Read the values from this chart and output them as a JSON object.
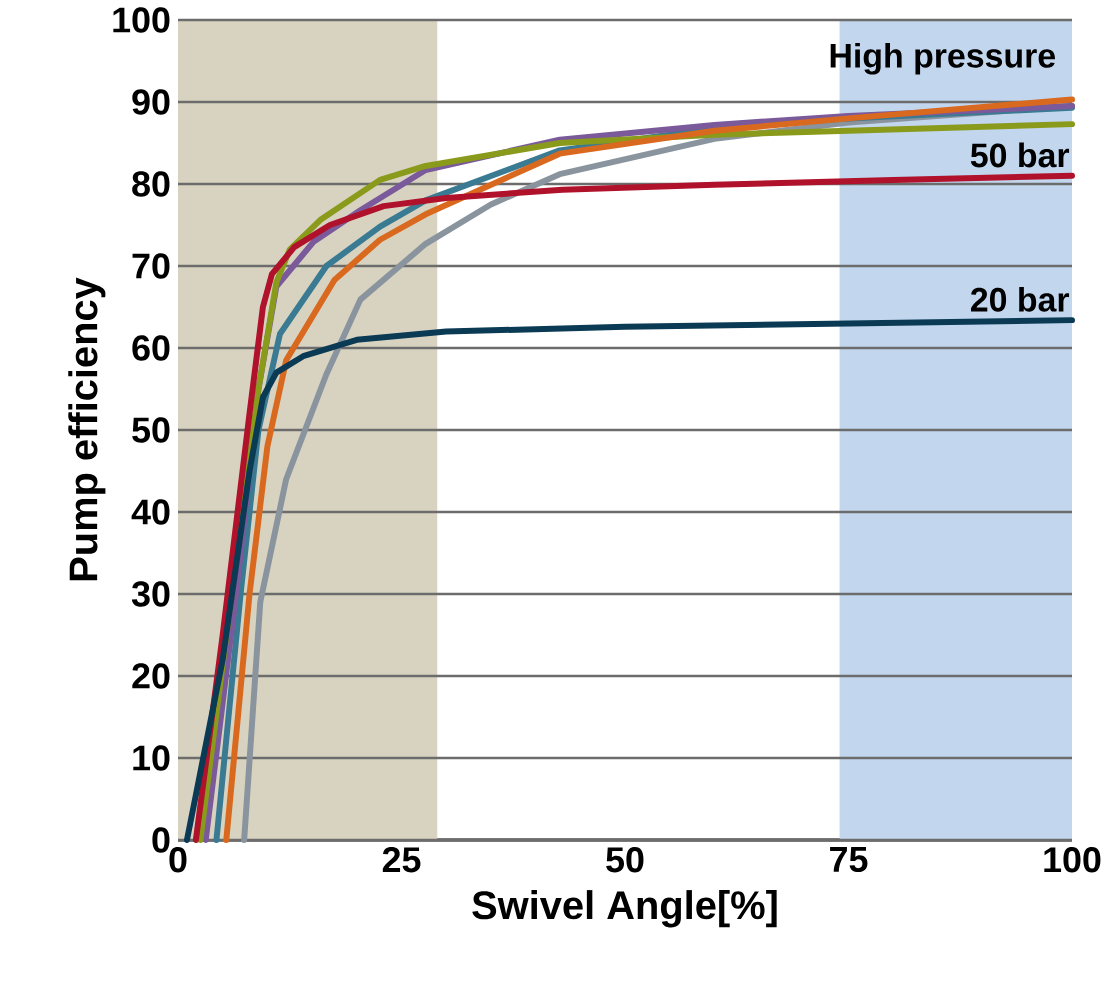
{
  "chart_data": {
    "type": "line",
    "xlabel": "Swivel Angle[%]",
    "ylabel": "Pump efficiency",
    "xlim": [
      0,
      100
    ],
    "ylim": [
      0,
      100
    ],
    "xticks": [
      0,
      25,
      50,
      75,
      100
    ],
    "yticks": [
      0,
      10,
      20,
      30,
      40,
      50,
      60,
      70,
      80,
      90,
      100
    ],
    "grid": "y",
    "marker": "none",
    "line_style": "solid",
    "annotations": [
      "High pressure"
    ],
    "bands": [
      {
        "axis": "x",
        "from": 0,
        "to": 29,
        "color": "#d8d3c1"
      },
      {
        "axis": "x",
        "from": 74,
        "to": 100,
        "color": "#c2d6ee"
      }
    ],
    "series": [
      {
        "color": "#8a949e",
        "x": [
          7.4,
          9.2,
          12.1,
          16.6,
          20.4,
          27.7,
          35,
          42.7,
          60,
          75,
          100
        ],
        "values": [
          0,
          29,
          44,
          56.8,
          65.9,
          72.7,
          77.5,
          81.2,
          85.5,
          87.5,
          89.5
        ]
      },
      {
        "color": "#3a7b93",
        "x": [
          4.3,
          7,
          9,
          11.4,
          16.6,
          22.6,
          27.7,
          42.7,
          60,
          75,
          100
        ],
        "values": [
          0,
          30,
          50,
          61.7,
          70,
          74.8,
          78,
          84.1,
          86.8,
          88,
          89.3
        ]
      },
      {
        "color": "#7a5a9a",
        "x": [
          3.1,
          6.5,
          9,
          11,
          15.2,
          20.4,
          27.7,
          42.7,
          60,
          75,
          100
        ],
        "values": [
          0,
          30,
          55,
          67.5,
          73,
          76.8,
          81.7,
          85.4,
          87.2,
          88.3,
          89.5
        ]
      },
      {
        "color": "#8a9a1b",
        "x": [
          2.5,
          6,
          9,
          11,
          12.5,
          15.9,
          22.6,
          27.7,
          42.7,
          60,
          75,
          100
        ],
        "values": [
          0,
          30,
          55,
          68,
          72,
          75.6,
          80.5,
          82.2,
          85,
          86,
          86.5,
          87.3
        ]
      },
      {
        "color": "#d9691e",
        "x": [
          5.4,
          8,
          10,
          12.1,
          17.5,
          22.6,
          27.7,
          42.7,
          60,
          75,
          100
        ],
        "values": [
          0,
          30,
          48,
          58.5,
          68.3,
          73.2,
          76.3,
          83.7,
          86.5,
          88,
          90.3
        ]
      },
      {
        "name": "50 bar",
        "color": "#b0112b",
        "x": [
          2,
          5,
          8,
          9.5,
          10.5,
          13,
          17,
          23,
          30,
          43,
          60,
          80,
          100
        ],
        "values": [
          0,
          25,
          52,
          65,
          69,
          72.3,
          75,
          77.3,
          78.3,
          79.3,
          79.9,
          80.5,
          81
        ]
      },
      {
        "name": "20 bar",
        "color": "#0b3a55",
        "x": [
          1,
          5,
          8,
          9.5,
          11,
          14,
          20,
          30,
          50,
          75,
          100
        ],
        "values": [
          0,
          22,
          45,
          54,
          57,
          59,
          61,
          62,
          62.6,
          63,
          63.4
        ]
      }
    ]
  }
}
